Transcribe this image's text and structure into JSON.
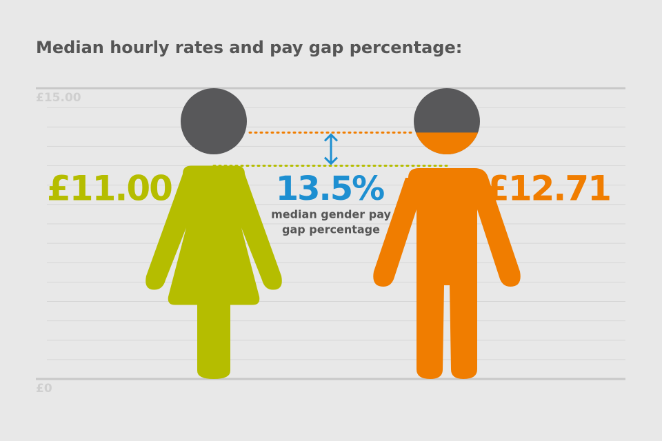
{
  "chart_data": {
    "type": "pictograph",
    "title": "Median hourly rates and pay gap percentage:",
    "values": [
      11.0,
      12.71
    ],
    "value_labels": [
      "£11.00",
      "£12.71"
    ],
    "colors": [
      "#b5bd00",
      "#f07d00"
    ],
    "head_color": "#58585a",
    "ylim": [
      0,
      15
    ],
    "yticks": [
      {
        "value": 0,
        "label": "£0"
      },
      {
        "value": 15,
        "label": "£15.00"
      }
    ],
    "gap": {
      "value": 13.5,
      "label": "13.5%",
      "color": "#1d8fd1",
      "text": [
        "median gender pay",
        "gap percentage"
      ]
    }
  }
}
